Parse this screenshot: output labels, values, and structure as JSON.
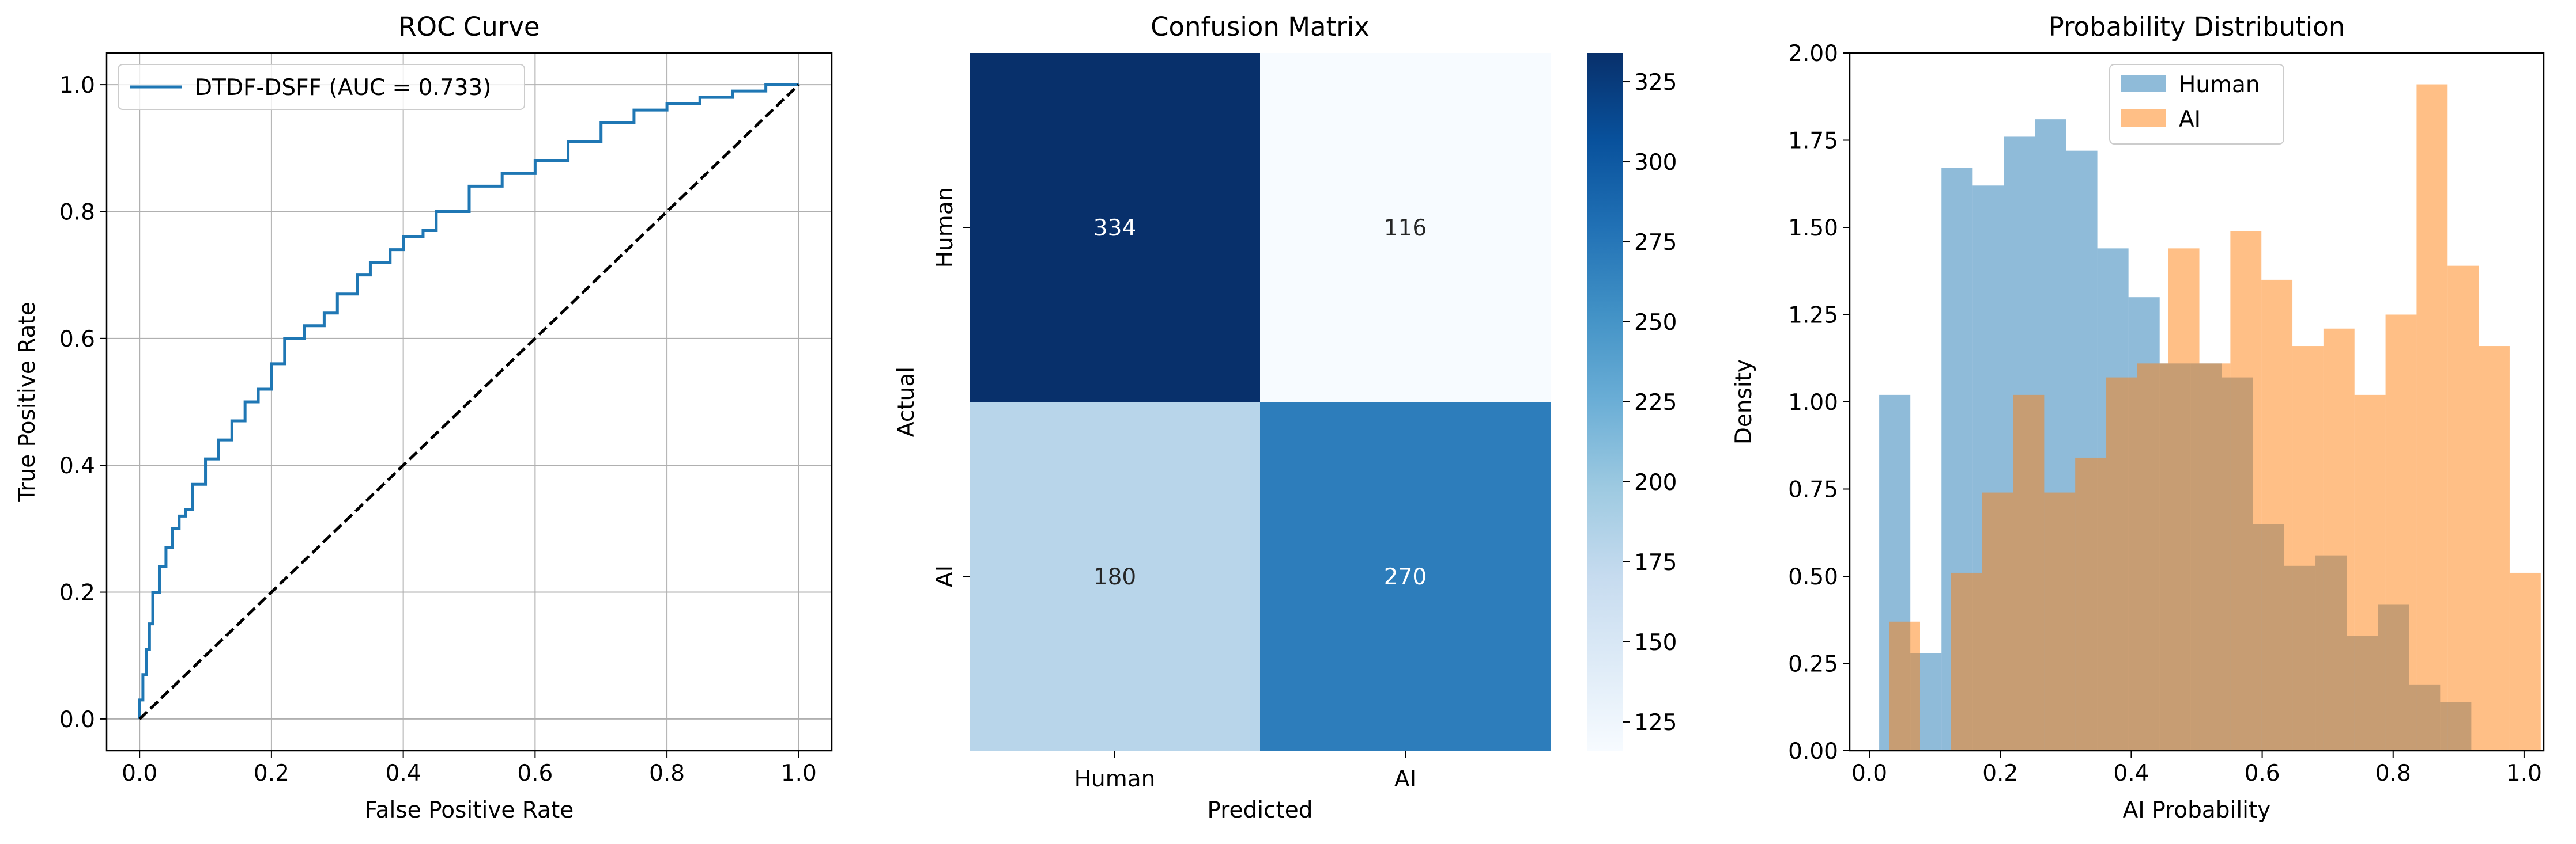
{
  "chart_data": [
    {
      "type": "line",
      "title": "ROC Curve",
      "xlabel": "False Positive Rate",
      "ylabel": "True Positive Rate",
      "xlim": [
        -0.05,
        1.05
      ],
      "ylim": [
        -0.05,
        1.05
      ],
      "xticks": [
        "0.0",
        "0.2",
        "0.4",
        "0.6",
        "0.8",
        "1.0"
      ],
      "yticks": [
        "0.0",
        "0.2",
        "0.4",
        "0.6",
        "0.8",
        "1.0"
      ],
      "grid": true,
      "legend_position": "top-left",
      "series": [
        {
          "name": "DTDF-DSFF (AUC = 0.733)",
          "color": "#1f77b4",
          "x": [
            0.0,
            0.005,
            0.01,
            0.015,
            0.02,
            0.03,
            0.04,
            0.05,
            0.06,
            0.07,
            0.08,
            0.1,
            0.12,
            0.14,
            0.16,
            0.18,
            0.2,
            0.22,
            0.25,
            0.28,
            0.3,
            0.33,
            0.35,
            0.38,
            0.4,
            0.43,
            0.45,
            0.5,
            0.55,
            0.6,
            0.65,
            0.7,
            0.75,
            0.8,
            0.85,
            0.9,
            0.95,
            1.0
          ],
          "y": [
            0.0,
            0.03,
            0.07,
            0.11,
            0.15,
            0.2,
            0.24,
            0.27,
            0.3,
            0.32,
            0.33,
            0.37,
            0.41,
            0.44,
            0.47,
            0.5,
            0.52,
            0.56,
            0.6,
            0.62,
            0.64,
            0.67,
            0.7,
            0.72,
            0.74,
            0.76,
            0.77,
            0.8,
            0.84,
            0.86,
            0.88,
            0.91,
            0.94,
            0.96,
            0.97,
            0.98,
            0.99,
            1.0
          ]
        },
        {
          "name": "",
          "color": "#000000",
          "style": "dashed",
          "x": [
            0,
            1
          ],
          "y": [
            0,
            1
          ]
        }
      ]
    },
    {
      "type": "heatmap",
      "title": "Confusion Matrix",
      "xlabel": "Predicted",
      "ylabel": "Actual",
      "x_categories": [
        "Human",
        "AI"
      ],
      "y_categories": [
        "Human",
        "AI"
      ],
      "values": [
        [
          334,
          116
        ],
        [
          180,
          270
        ]
      ],
      "colormap": "Blues",
      "colorbar_range": [
        116,
        334
      ],
      "colorbar_ticks": [
        "125",
        "150",
        "175",
        "200",
        "225",
        "250",
        "275",
        "300",
        "325"
      ]
    },
    {
      "type": "bar",
      "subtype": "histogram",
      "title": "Probability Distribution",
      "xlabel": "AI Probability",
      "ylabel": "Density",
      "xlim": [
        -0.03,
        1.03
      ],
      "ylim": [
        0,
        2.0
      ],
      "xticks": [
        "0.0",
        "0.2",
        "0.4",
        "0.6",
        "0.8",
        "1.0"
      ],
      "yticks": [
        "0.00",
        "0.25",
        "0.50",
        "0.75",
        "1.00",
        "1.25",
        "1.50",
        "1.75",
        "2.00"
      ],
      "legend_position": "top-center",
      "series": [
        {
          "name": "Human",
          "color": "#1f77b4",
          "opacity": 0.5,
          "bin_start": 0.015,
          "bin_width": 0.0476,
          "values": [
            1.02,
            0.28,
            1.67,
            1.62,
            1.76,
            1.81,
            1.72,
            1.44,
            1.3,
            1.11,
            1.11,
            1.07,
            0.65,
            0.53,
            0.56,
            0.33,
            0.42,
            0.19,
            0.14
          ]
        },
        {
          "name": "AI",
          "color": "#ff7f0e",
          "opacity": 0.5,
          "bin_start": 0.03,
          "bin_width": 0.0474,
          "values": [
            0.37,
            0.0,
            0.51,
            0.74,
            1.02,
            0.74,
            0.84,
            1.07,
            1.11,
            1.44,
            1.11,
            1.49,
            1.35,
            1.16,
            1.21,
            1.02,
            1.25,
            1.91,
            1.39,
            1.16,
            0.51
          ]
        }
      ]
    }
  ]
}
